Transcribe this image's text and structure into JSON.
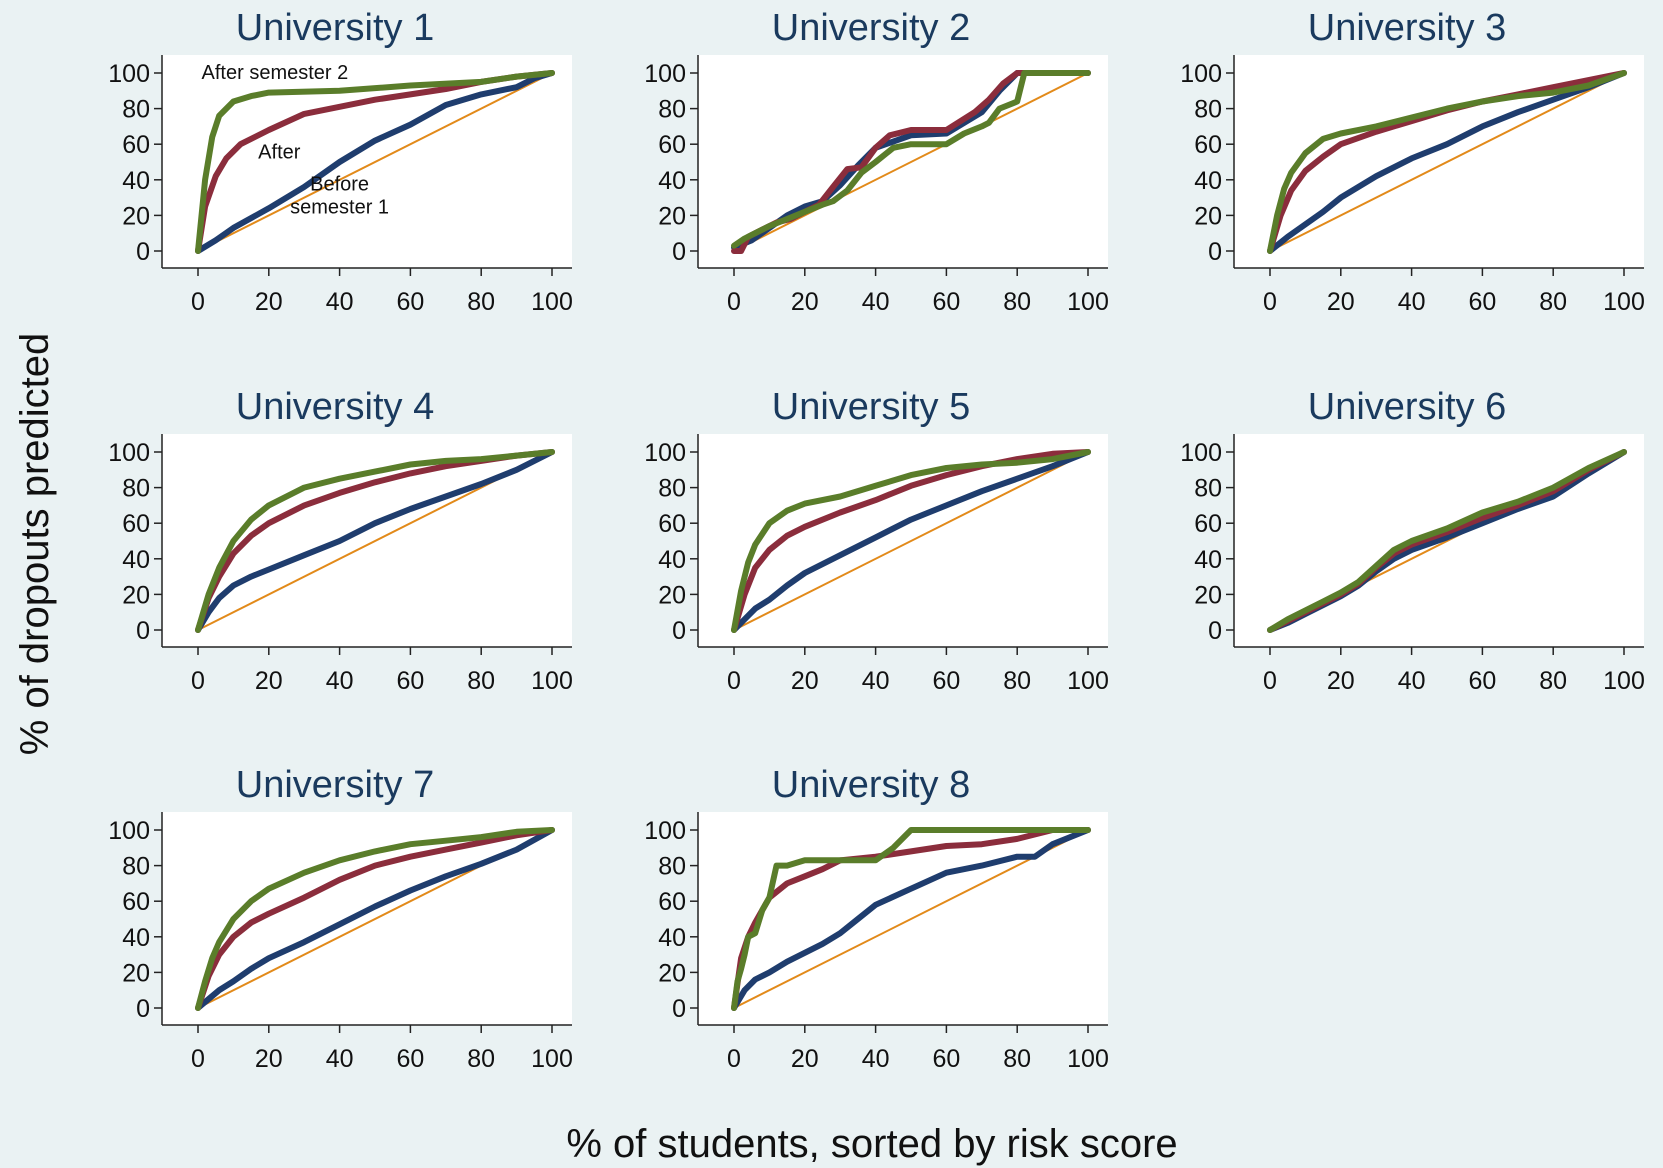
{
  "figure": {
    "ylabel": "% of dropouts predicted",
    "xlabel": "% of students, sorted by risk score"
  },
  "colors": {
    "background": "#eaf2f3",
    "plot_bg": "#ffffff",
    "title": "#1a3a5e",
    "before_semester_1": "#1f3d6e",
    "after_semester_1": "#8b2d3c",
    "after_semester_2": "#5a7d2a",
    "diagonal": "#e28a1a"
  },
  "chart_data": [
    {
      "type": "line",
      "title": "University 1",
      "xlim": [
        0,
        100
      ],
      "ylim": [
        0,
        100
      ],
      "xticks": [
        "0",
        "20",
        "40",
        "60",
        "80",
        "100"
      ],
      "yticks": [
        "0",
        "20",
        "40",
        "60",
        "80",
        "100"
      ],
      "annotations": [
        "After semester 2",
        "After",
        "Before",
        "semester 1"
      ],
      "series": [
        {
          "key": "before_semester_1",
          "x": [
            0,
            5,
            10,
            20,
            30,
            40,
            50,
            60,
            70,
            80,
            90,
            95,
            100
          ],
          "y": [
            0,
            6,
            13,
            24,
            36,
            50,
            62,
            71,
            82,
            88,
            92,
            97,
            100
          ]
        },
        {
          "key": "after_semester_1",
          "x": [
            0,
            2,
            5,
            8,
            12,
            20,
            30,
            40,
            50,
            60,
            70,
            80,
            90,
            100
          ],
          "y": [
            0,
            25,
            42,
            52,
            60,
            68,
            77,
            81,
            85,
            88,
            91,
            95,
            98,
            100
          ]
        },
        {
          "key": "after_semester_2",
          "x": [
            0,
            2,
            4,
            6,
            10,
            15,
            20,
            40,
            60,
            80,
            90,
            100
          ],
          "y": [
            0,
            40,
            64,
            76,
            84,
            87,
            89,
            90,
            93,
            95,
            98,
            100
          ]
        },
        {
          "key": "diagonal",
          "x": [
            0,
            100
          ],
          "y": [
            0,
            100
          ]
        }
      ]
    },
    {
      "type": "line",
      "title": "University 2",
      "xlim": [
        0,
        100
      ],
      "ylim": [
        0,
        100
      ],
      "xticks": [
        "0",
        "20",
        "40",
        "60",
        "80",
        "100"
      ],
      "yticks": [
        "0",
        "20",
        "40",
        "60",
        "80",
        "100"
      ],
      "series": [
        {
          "key": "before_semester_1",
          "x": [
            0,
            5,
            10,
            15,
            20,
            25,
            30,
            35,
            40,
            50,
            60,
            70,
            75,
            80,
            100
          ],
          "y": [
            2,
            6,
            13,
            20,
            25,
            28,
            37,
            48,
            58,
            65,
            66,
            78,
            90,
            100,
            100
          ]
        },
        {
          "key": "after_semester_1",
          "x": [
            0,
            2,
            4,
            8,
            12,
            16,
            20,
            24,
            28,
            32,
            36,
            40,
            44,
            50,
            60,
            68,
            72,
            76,
            80,
            100
          ],
          "y": [
            0,
            0,
            8,
            12,
            16,
            18,
            22,
            26,
            36,
            46,
            47,
            58,
            65,
            68,
            68,
            78,
            85,
            94,
            100,
            100
          ]
        },
        {
          "key": "after_semester_2",
          "x": [
            0,
            3,
            6,
            10,
            15,
            20,
            25,
            28,
            32,
            36,
            40,
            45,
            50,
            55,
            60,
            65,
            70,
            72,
            75,
            80,
            82,
            100
          ],
          "y": [
            3,
            7,
            10,
            14,
            18,
            22,
            26,
            28,
            34,
            44,
            50,
            58,
            60,
            60,
            60,
            66,
            70,
            72,
            80,
            84,
            100,
            100
          ]
        },
        {
          "key": "diagonal",
          "x": [
            0,
            100
          ],
          "y": [
            0,
            100
          ]
        }
      ]
    },
    {
      "type": "line",
      "title": "University 3",
      "xlim": [
        0,
        100
      ],
      "ylim": [
        0,
        100
      ],
      "xticks": [
        "0",
        "20",
        "40",
        "60",
        "80",
        "100"
      ],
      "yticks": [
        "0",
        "20",
        "40",
        "60",
        "80",
        "100"
      ],
      "series": [
        {
          "key": "before_semester_1",
          "x": [
            0,
            5,
            10,
            15,
            20,
            30,
            40,
            50,
            60,
            70,
            80,
            90,
            100
          ],
          "y": [
            0,
            8,
            15,
            22,
            30,
            42,
            52,
            60,
            70,
            78,
            85,
            92,
            100
          ]
        },
        {
          "key": "after_semester_1",
          "x": [
            0,
            3,
            6,
            10,
            15,
            20,
            30,
            40,
            50,
            60,
            70,
            80,
            90,
            100
          ],
          "y": [
            0,
            20,
            34,
            45,
            53,
            60,
            67,
            73,
            79,
            84,
            88,
            92,
            96,
            100
          ]
        },
        {
          "key": "after_semester_2",
          "x": [
            0,
            2,
            4,
            6,
            10,
            15,
            20,
            30,
            40,
            50,
            60,
            70,
            80,
            90,
            100
          ],
          "y": [
            0,
            20,
            35,
            44,
            55,
            63,
            66,
            70,
            75,
            80,
            84,
            87,
            89,
            93,
            100
          ]
        },
        {
          "key": "diagonal",
          "x": [
            0,
            100
          ],
          "y": [
            0,
            100
          ]
        }
      ]
    },
    {
      "type": "line",
      "title": "University 4",
      "xlim": [
        0,
        100
      ],
      "ylim": [
        0,
        100
      ],
      "xticks": [
        "0",
        "20",
        "40",
        "60",
        "80",
        "100"
      ],
      "yticks": [
        "0",
        "20",
        "40",
        "60",
        "80",
        "100"
      ],
      "series": [
        {
          "key": "before_semester_1",
          "x": [
            0,
            3,
            6,
            10,
            15,
            20,
            30,
            40,
            50,
            60,
            70,
            80,
            90,
            100
          ],
          "y": [
            0,
            10,
            18,
            25,
            30,
            34,
            42,
            50,
            60,
            68,
            75,
            82,
            90,
            100
          ]
        },
        {
          "key": "after_semester_1",
          "x": [
            0,
            3,
            6,
            10,
            15,
            20,
            30,
            40,
            50,
            60,
            70,
            80,
            90,
            100
          ],
          "y": [
            0,
            18,
            30,
            43,
            53,
            60,
            70,
            77,
            83,
            88,
            92,
            95,
            98,
            100
          ]
        },
        {
          "key": "after_semester_2",
          "x": [
            0,
            3,
            6,
            10,
            15,
            20,
            30,
            40,
            50,
            60,
            70,
            80,
            90,
            100
          ],
          "y": [
            0,
            20,
            35,
            50,
            62,
            70,
            80,
            85,
            89,
            93,
            95,
            96,
            98,
            100
          ]
        },
        {
          "key": "diagonal",
          "x": [
            0,
            100
          ],
          "y": [
            0,
            100
          ]
        }
      ]
    },
    {
      "type": "line",
      "title": "University 5",
      "xlim": [
        0,
        100
      ],
      "ylim": [
        0,
        100
      ],
      "xticks": [
        "0",
        "20",
        "40",
        "60",
        "80",
        "100"
      ],
      "yticks": [
        "0",
        "20",
        "40",
        "60",
        "80",
        "100"
      ],
      "series": [
        {
          "key": "before_semester_1",
          "x": [
            0,
            3,
            6,
            10,
            15,
            20,
            30,
            40,
            50,
            60,
            70,
            80,
            90,
            100
          ],
          "y": [
            0,
            6,
            12,
            17,
            25,
            32,
            42,
            52,
            62,
            70,
            78,
            85,
            92,
            100
          ]
        },
        {
          "key": "after_semester_1",
          "x": [
            0,
            3,
            6,
            10,
            15,
            20,
            30,
            40,
            50,
            60,
            70,
            80,
            90,
            100
          ],
          "y": [
            0,
            20,
            35,
            45,
            53,
            58,
            66,
            73,
            81,
            87,
            92,
            96,
            99,
            100
          ]
        },
        {
          "key": "after_semester_2",
          "x": [
            0,
            2,
            4,
            6,
            10,
            15,
            20,
            30,
            40,
            50,
            60,
            70,
            80,
            90,
            100
          ],
          "y": [
            0,
            22,
            38,
            48,
            60,
            67,
            71,
            75,
            81,
            87,
            91,
            93,
            94,
            96,
            100
          ]
        },
        {
          "key": "diagonal",
          "x": [
            0,
            100
          ],
          "y": [
            0,
            100
          ]
        }
      ]
    },
    {
      "type": "line",
      "title": "University 6",
      "xlim": [
        0,
        100
      ],
      "ylim": [
        0,
        100
      ],
      "xticks": [
        "0",
        "20",
        "40",
        "60",
        "80",
        "100"
      ],
      "yticks": [
        "0",
        "20",
        "40",
        "60",
        "80",
        "100"
      ],
      "series": [
        {
          "key": "before_semester_1",
          "x": [
            0,
            5,
            10,
            15,
            20,
            25,
            30,
            35,
            40,
            50,
            60,
            70,
            80,
            90,
            100
          ],
          "y": [
            0,
            4,
            9,
            14,
            19,
            25,
            33,
            40,
            45,
            52,
            60,
            68,
            75,
            88,
            100
          ]
        },
        {
          "key": "after_semester_1",
          "x": [
            0,
            5,
            10,
            15,
            20,
            25,
            30,
            35,
            40,
            50,
            60,
            70,
            80,
            90,
            100
          ],
          "y": [
            0,
            5,
            10,
            15,
            20,
            26,
            35,
            43,
            48,
            55,
            63,
            70,
            78,
            90,
            100
          ]
        },
        {
          "key": "after_semester_2",
          "x": [
            0,
            5,
            10,
            15,
            20,
            25,
            30,
            35,
            40,
            50,
            60,
            70,
            80,
            90,
            100
          ],
          "y": [
            0,
            6,
            11,
            16,
            21,
            27,
            36,
            45,
            50,
            57,
            66,
            72,
            80,
            91,
            100
          ]
        },
        {
          "key": "diagonal",
          "x": [
            0,
            100
          ],
          "y": [
            0,
            100
          ]
        }
      ]
    },
    {
      "type": "line",
      "title": "University 7",
      "xlim": [
        0,
        100
      ],
      "ylim": [
        0,
        100
      ],
      "xticks": [
        "0",
        "20",
        "40",
        "60",
        "80",
        "100"
      ],
      "yticks": [
        "0",
        "20",
        "40",
        "60",
        "80",
        "100"
      ],
      "series": [
        {
          "key": "before_semester_1",
          "x": [
            0,
            3,
            6,
            10,
            15,
            20,
            30,
            40,
            50,
            60,
            70,
            80,
            90,
            100
          ],
          "y": [
            0,
            5,
            10,
            15,
            22,
            28,
            37,
            47,
            57,
            66,
            74,
            81,
            89,
            100
          ]
        },
        {
          "key": "after_semester_1",
          "x": [
            0,
            3,
            6,
            10,
            15,
            20,
            30,
            40,
            50,
            60,
            70,
            80,
            90,
            100
          ],
          "y": [
            0,
            18,
            30,
            40,
            48,
            53,
            62,
            72,
            80,
            85,
            89,
            93,
            97,
            100
          ]
        },
        {
          "key": "after_semester_2",
          "x": [
            0,
            2,
            4,
            6,
            10,
            15,
            20,
            30,
            40,
            50,
            60,
            70,
            80,
            90,
            100
          ],
          "y": [
            0,
            15,
            28,
            37,
            50,
            60,
            67,
            76,
            83,
            88,
            92,
            94,
            96,
            99,
            100
          ]
        },
        {
          "key": "diagonal",
          "x": [
            0,
            100
          ],
          "y": [
            0,
            100
          ]
        }
      ]
    },
    {
      "type": "line",
      "title": "University 8",
      "xlim": [
        0,
        100
      ],
      "ylim": [
        0,
        100
      ],
      "xticks": [
        "0",
        "20",
        "40",
        "60",
        "80",
        "100"
      ],
      "yticks": [
        "0",
        "20",
        "40",
        "60",
        "80",
        "100"
      ],
      "series": [
        {
          "key": "before_semester_1",
          "x": [
            0,
            3,
            6,
            10,
            15,
            20,
            25,
            30,
            35,
            40,
            50,
            60,
            70,
            80,
            85,
            90,
            100
          ],
          "y": [
            0,
            10,
            16,
            20,
            26,
            31,
            36,
            42,
            50,
            58,
            67,
            76,
            80,
            85,
            85,
            92,
            100
          ]
        },
        {
          "key": "after_semester_1",
          "x": [
            0,
            2,
            4,
            6,
            10,
            15,
            20,
            25,
            30,
            40,
            50,
            60,
            70,
            80,
            90,
            100
          ],
          "y": [
            0,
            28,
            40,
            48,
            62,
            70,
            74,
            78,
            83,
            85,
            88,
            91,
            92,
            95,
            100,
            100
          ]
        },
        {
          "key": "after_semester_2",
          "x": [
            0,
            1,
            2,
            3,
            4,
            6,
            8,
            10,
            12,
            15,
            20,
            30,
            40,
            45,
            50,
            60,
            70,
            80,
            90,
            100
          ],
          "y": [
            0,
            15,
            22,
            30,
            40,
            42,
            55,
            62,
            80,
            80,
            83,
            83,
            83,
            90,
            100,
            100,
            100,
            100,
            100,
            100
          ]
        },
        {
          "key": "diagonal",
          "x": [
            0,
            100
          ],
          "y": [
            0,
            100
          ]
        }
      ]
    }
  ]
}
